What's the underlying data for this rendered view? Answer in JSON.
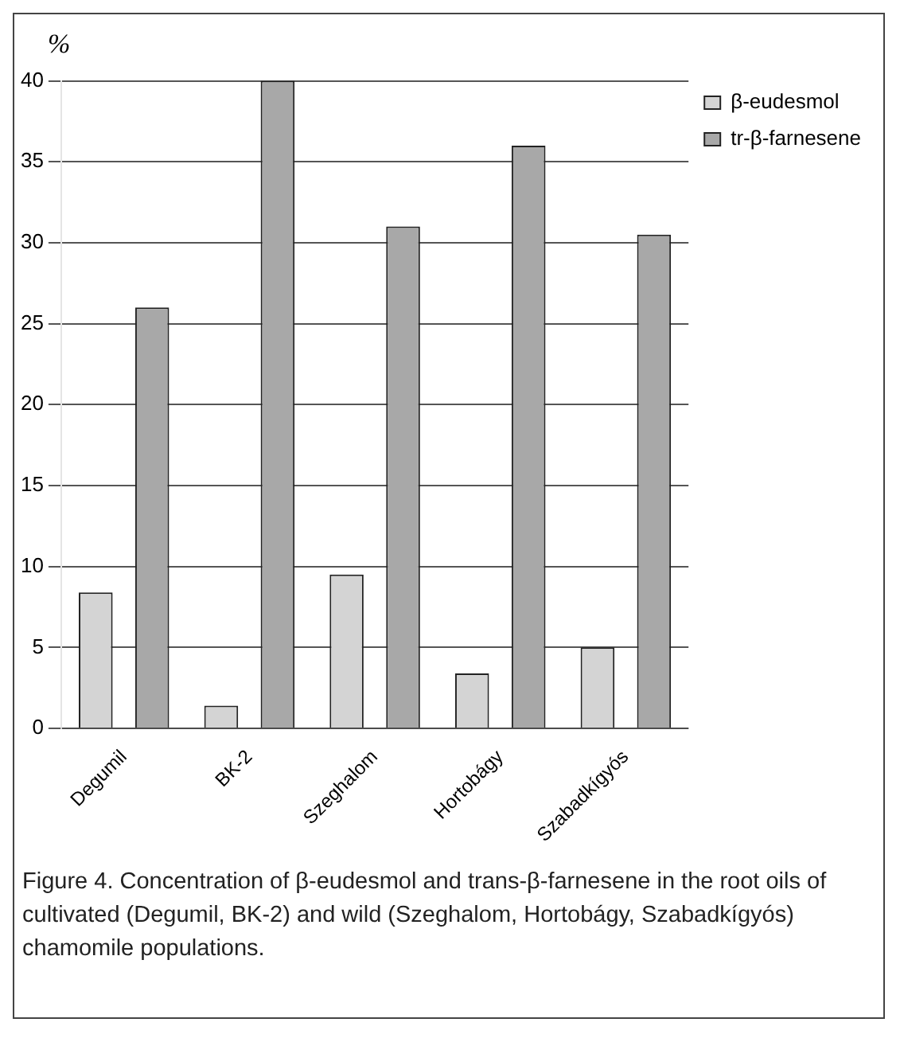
{
  "chart_data": {
    "type": "bar",
    "ylabel": "%",
    "categories": [
      "Degumil",
      "BK-2",
      "Szeghalom",
      "Hortobágy",
      "Szabadkígyós"
    ],
    "series": [
      {
        "name": "β-eudesmol",
        "color": "#d4d4d4",
        "values": [
          8.4,
          1.4,
          9.5,
          3.4,
          5
        ]
      },
      {
        "name": "tr-β-farnesene",
        "color": "#a8a8a8",
        "values": [
          26,
          40,
          31,
          36,
          30.5
        ]
      }
    ],
    "ylim": [
      0,
      40
    ],
    "yticks": [
      0,
      5,
      10,
      15,
      20,
      25,
      30,
      35,
      40
    ],
    "grid": "y",
    "legend": "top right",
    "annotations": [
      "Figure 4. Concentration of β-eudesmol and trans-β-farnesene in the root oils of cultivated (Degumil, BK-2) and wild (Szeghalom, Hortobágy, Szabadkígyós) chamomile populations."
    ]
  }
}
